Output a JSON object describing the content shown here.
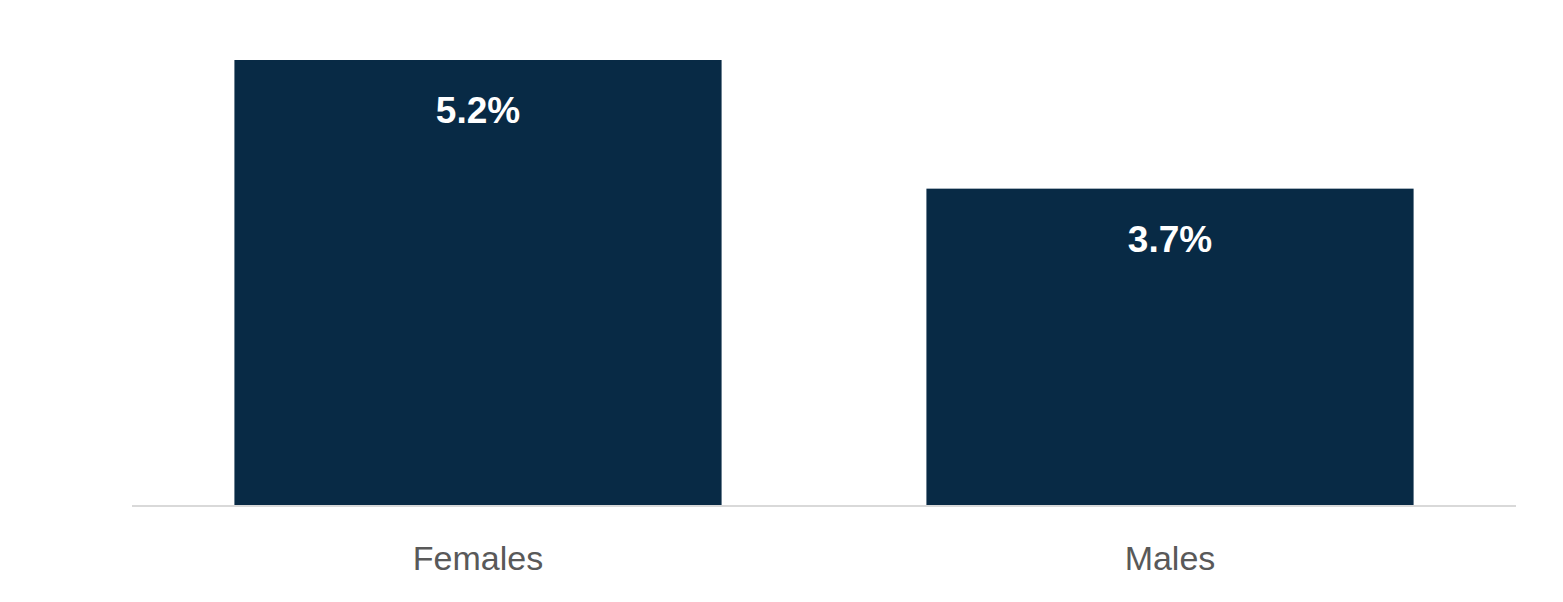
{
  "chart_data": {
    "type": "bar",
    "categories": [
      "Females",
      "Males"
    ],
    "values": [
      5.2,
      3.7
    ],
    "value_labels": [
      "5.2%",
      "3.7%"
    ],
    "color": "#082a45",
    "ylim": [
      0,
      5.2
    ],
    "data_labels": true,
    "tick_labels": "x",
    "grid": false
  }
}
